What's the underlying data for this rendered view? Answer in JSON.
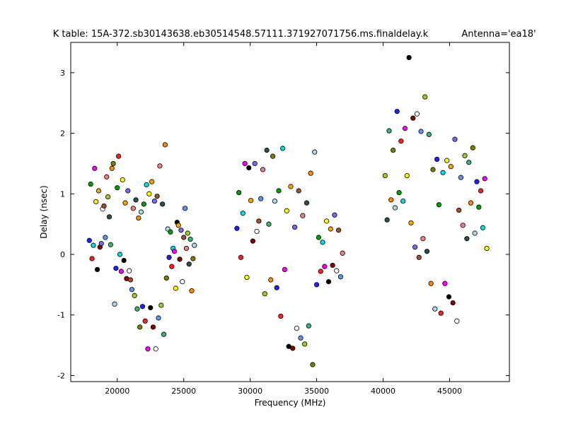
{
  "chart_data": {
    "type": "scatter",
    "title": "K table: 15A-372.sb30143638.eb30514548.57111.371927071756.ms.finaldelay.k",
    "subtitle": "Antenna='ea18'",
    "xlabel": "Frequency (MHz)",
    "ylabel": "Delay (nsec)",
    "xlim": [
      16500,
      49500
    ],
    "ylim": [
      -2.1,
      3.5
    ],
    "xticks": [
      20000,
      25000,
      30000,
      35000,
      40000,
      45000
    ],
    "yticks": [
      -2,
      -1,
      0,
      1,
      2,
      3
    ],
    "grid": false,
    "marker_colors": [
      "#1f1fff",
      "#00a000",
      "#ff2020",
      "#00e0e0",
      "#ff00ff",
      "#ffff00",
      "#000000",
      "#ffa500",
      "#8b0000",
      "#7b68ee",
      "#ffffff",
      "#a0522d",
      "#6495ed",
      "#f08080",
      "#9acd32",
      "#2f4f4f",
      "#3cb371",
      "#ff8c00",
      "#808000",
      "#add8e6"
    ],
    "points": [
      {
        "x": 17900,
        "y": 0.23
      },
      {
        "x": 18000,
        "y": 1.16
      },
      {
        "x": 18100,
        "y": -0.07
      },
      {
        "x": 18200,
        "y": 0.15
      },
      {
        "x": 18300,
        "y": 1.42
      },
      {
        "x": 18400,
        "y": 0.87
      },
      {
        "x": 18500,
        "y": -0.25
      },
      {
        "x": 18600,
        "y": 1.05
      },
      {
        "x": 18700,
        "y": 0.12
      },
      {
        "x": 18800,
        "y": 0.18
      },
      {
        "x": 18900,
        "y": 0.75
      },
      {
        "x": 19000,
        "y": 0.8
      },
      {
        "x": 19100,
        "y": 0.28
      },
      {
        "x": 19200,
        "y": 1.28
      },
      {
        "x": 19300,
        "y": 0.95
      },
      {
        "x": 19400,
        "y": 0.62
      },
      {
        "x": 19500,
        "y": 0.16
      },
      {
        "x": 19600,
        "y": 1.42
      },
      {
        "x": 19700,
        "y": 1.5
      },
      {
        "x": 19800,
        "y": -0.82
      },
      {
        "x": 19900,
        "y": -0.23
      },
      {
        "x": 20000,
        "y": 1.1
      },
      {
        "x": 20100,
        "y": 1.62
      },
      {
        "x": 20200,
        "y": 0.0
      },
      {
        "x": 20300,
        "y": -0.28
      },
      {
        "x": 20400,
        "y": 1.23
      },
      {
        "x": 20500,
        "y": -0.1
      },
      {
        "x": 20600,
        "y": 0.85
      },
      {
        "x": 20700,
        "y": -0.4
      },
      {
        "x": 20800,
        "y": 1.05
      },
      {
        "x": 20900,
        "y": -0.27
      },
      {
        "x": 21000,
        "y": -0.42
      },
      {
        "x": 21100,
        "y": -0.58
      },
      {
        "x": 21200,
        "y": 0.76
      },
      {
        "x": 21300,
        "y": -0.68
      },
      {
        "x": 21400,
        "y": 0.9
      },
      {
        "x": 21500,
        "y": -0.9
      },
      {
        "x": 21600,
        "y": 0.6
      },
      {
        "x": 21700,
        "y": -1.2
      },
      {
        "x": 21800,
        "y": 0.7
      },
      {
        "x": 21900,
        "y": -0.86
      },
      {
        "x": 22000,
        "y": 0.83
      },
      {
        "x": 22100,
        "y": -1.1
      },
      {
        "x": 22200,
        "y": 1.15
      },
      {
        "x": 22300,
        "y": -1.56
      },
      {
        "x": 22400,
        "y": 1.0
      },
      {
        "x": 22500,
        "y": -0.88
      },
      {
        "x": 22600,
        "y": 1.2
      },
      {
        "x": 22700,
        "y": -1.2
      },
      {
        "x": 22800,
        "y": 0.88
      },
      {
        "x": 22900,
        "y": -1.56
      },
      {
        "x": 23000,
        "y": 0.96
      },
      {
        "x": 23100,
        "y": -1.05
      },
      {
        "x": 23200,
        "y": 1.46
      },
      {
        "x": 23300,
        "y": -0.84
      },
      {
        "x": 23400,
        "y": 0.83
      },
      {
        "x": 23500,
        "y": -1.32
      },
      {
        "x": 23600,
        "y": 1.81
      },
      {
        "x": 23700,
        "y": -0.39
      },
      {
        "x": 23800,
        "y": 0.42
      },
      {
        "x": 23900,
        "y": -0.05
      },
      {
        "x": 24000,
        "y": 0.37
      },
      {
        "x": 24100,
        "y": -0.2
      },
      {
        "x": 24200,
        "y": 0.1
      },
      {
        "x": 24300,
        "y": 0.05
      },
      {
        "x": 24400,
        "y": -0.56
      },
      {
        "x": 24500,
        "y": 0.53
      },
      {
        "x": 24600,
        "y": 0.48
      },
      {
        "x": 24700,
        "y": -0.08
      },
      {
        "x": 24800,
        "y": 0.4
      },
      {
        "x": 24900,
        "y": -0.45
      },
      {
        "x": 25000,
        "y": 0.28
      },
      {
        "x": 25100,
        "y": 0.76
      },
      {
        "x": 25200,
        "y": 0.1
      },
      {
        "x": 25300,
        "y": 0.35
      },
      {
        "x": 25400,
        "y": -0.16
      },
      {
        "x": 25500,
        "y": 0.25
      },
      {
        "x": 25600,
        "y": -0.6
      },
      {
        "x": 25700,
        "y": -0.07
      },
      {
        "x": 25800,
        "y": 0.15
      },
      {
        "x": 29000,
        "y": 0.43
      },
      {
        "x": 29150,
        "y": 1.02
      },
      {
        "x": 29300,
        "y": -0.05
      },
      {
        "x": 29450,
        "y": 0.68
      },
      {
        "x": 29600,
        "y": 1.5
      },
      {
        "x": 29750,
        "y": -0.38
      },
      {
        "x": 29900,
        "y": 1.43
      },
      {
        "x": 30050,
        "y": 0.89
      },
      {
        "x": 30200,
        "y": 0.22
      },
      {
        "x": 30350,
        "y": 1.5
      },
      {
        "x": 30500,
        "y": 0.38
      },
      {
        "x": 30650,
        "y": 0.55
      },
      {
        "x": 30800,
        "y": 0.92
      },
      {
        "x": 30950,
        "y": 1.4
      },
      {
        "x": 31100,
        "y": -0.65
      },
      {
        "x": 31250,
        "y": 1.72
      },
      {
        "x": 31400,
        "y": 0.5
      },
      {
        "x": 31550,
        "y": -0.42
      },
      {
        "x": 31700,
        "y": 1.62
      },
      {
        "x": 31850,
        "y": 0.88
      },
      {
        "x": 32000,
        "y": -0.55
      },
      {
        "x": 32150,
        "y": 1.05
      },
      {
        "x": 32300,
        "y": -1.02
      },
      {
        "x": 32450,
        "y": 1.75
      },
      {
        "x": 32600,
        "y": -0.25
      },
      {
        "x": 32750,
        "y": 0.72
      },
      {
        "x": 32900,
        "y": -1.52
      },
      {
        "x": 33050,
        "y": 1.12
      },
      {
        "x": 33200,
        "y": -1.55
      },
      {
        "x": 33350,
        "y": 0.45
      },
      {
        "x": 33500,
        "y": -1.22
      },
      {
        "x": 33650,
        "y": 1.05
      },
      {
        "x": 33800,
        "y": -1.38
      },
      {
        "x": 33950,
        "y": 0.64
      },
      {
        "x": 34100,
        "y": -1.48
      },
      {
        "x": 34250,
        "y": 0.85
      },
      {
        "x": 34400,
        "y": -1.18
      },
      {
        "x": 34550,
        "y": 1.34
      },
      {
        "x": 34700,
        "y": -1.82
      },
      {
        "x": 34850,
        "y": 1.69
      },
      {
        "x": 35000,
        "y": -0.5
      },
      {
        "x": 35150,
        "y": 0.28
      },
      {
        "x": 35300,
        "y": -0.28
      },
      {
        "x": 35450,
        "y": 0.2
      },
      {
        "x": 35600,
        "y": -0.2
      },
      {
        "x": 35750,
        "y": 0.55
      },
      {
        "x": 35900,
        "y": -0.45
      },
      {
        "x": 36050,
        "y": 0.42
      },
      {
        "x": 36200,
        "y": -0.18
      },
      {
        "x": 36350,
        "y": 0.65
      },
      {
        "x": 36500,
        "y": -0.27
      },
      {
        "x": 36650,
        "y": 0.4
      },
      {
        "x": 36800,
        "y": -0.37
      },
      {
        "x": 36950,
        "y": 0.02
      },
      {
        "x": 40150,
        "y": 1.3
      },
      {
        "x": 40300,
        "y": 0.57
      },
      {
        "x": 40450,
        "y": 2.04
      },
      {
        "x": 40600,
        "y": 0.9
      },
      {
        "x": 40750,
        "y": 1.72
      },
      {
        "x": 40900,
        "y": 0.77
      },
      {
        "x": 41050,
        "y": 2.36
      },
      {
        "x": 41200,
        "y": 1.02
      },
      {
        "x": 41350,
        "y": 1.87
      },
      {
        "x": 41500,
        "y": 0.88
      },
      {
        "x": 41650,
        "y": 2.08
      },
      {
        "x": 41800,
        "y": 1.3
      },
      {
        "x": 41950,
        "y": 3.25
      },
      {
        "x": 42100,
        "y": 0.52
      },
      {
        "x": 42250,
        "y": 2.25
      },
      {
        "x": 42400,
        "y": 0.12
      },
      {
        "x": 42550,
        "y": 2.32
      },
      {
        "x": 42700,
        "y": -0.05
      },
      {
        "x": 42850,
        "y": 2.03
      },
      {
        "x": 43000,
        "y": 0.26
      },
      {
        "x": 43150,
        "y": 2.6
      },
      {
        "x": 43300,
        "y": 0.05
      },
      {
        "x": 43450,
        "y": 1.98
      },
      {
        "x": 43600,
        "y": -0.48
      },
      {
        "x": 43750,
        "y": 1.4
      },
      {
        "x": 43900,
        "y": -0.9
      },
      {
        "x": 44050,
        "y": 1.57
      },
      {
        "x": 44200,
        "y": 0.82
      },
      {
        "x": 44350,
        "y": -0.97
      },
      {
        "x": 44500,
        "y": 1.35
      },
      {
        "x": 44650,
        "y": -0.48
      },
      {
        "x": 44800,
        "y": 1.55
      },
      {
        "x": 44950,
        "y": -0.7
      },
      {
        "x": 45100,
        "y": 1.45
      },
      {
        "x": 45250,
        "y": -0.8
      },
      {
        "x": 45400,
        "y": 1.9
      },
      {
        "x": 45550,
        "y": -1.1
      },
      {
        "x": 45700,
        "y": 0.73
      },
      {
        "x": 45850,
        "y": 1.27
      },
      {
        "x": 46000,
        "y": 0.48
      },
      {
        "x": 46150,
        "y": 1.63
      },
      {
        "x": 46300,
        "y": 0.26
      },
      {
        "x": 46450,
        "y": 1.52
      },
      {
        "x": 46600,
        "y": 0.85
      },
      {
        "x": 46750,
        "y": 1.76
      },
      {
        "x": 46900,
        "y": 0.35
      },
      {
        "x": 47050,
        "y": 1.2
      },
      {
        "x": 47200,
        "y": 0.78
      },
      {
        "x": 47350,
        "y": 1.05
      },
      {
        "x": 47500,
        "y": 0.44
      },
      {
        "x": 47650,
        "y": 1.25
      },
      {
        "x": 47800,
        "y": 0.1
      }
    ]
  }
}
